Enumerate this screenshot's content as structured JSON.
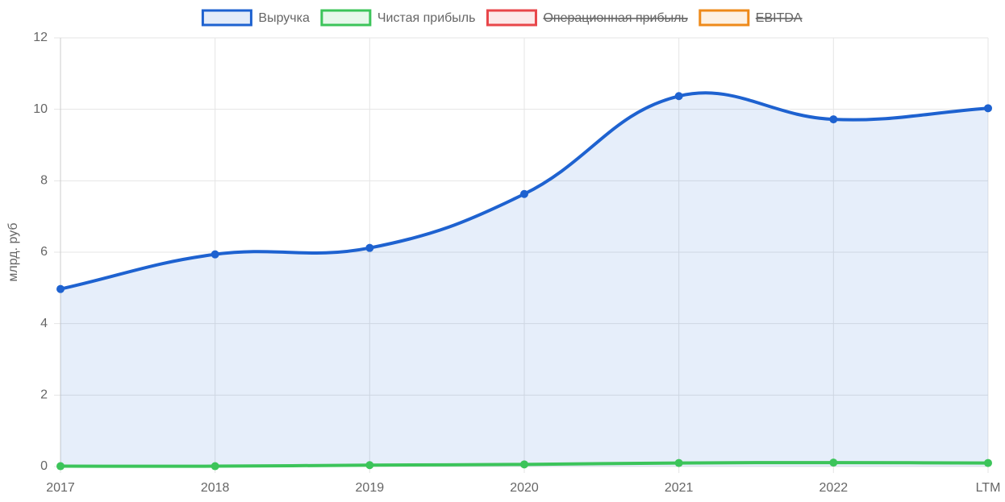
{
  "chart_data": {
    "type": "line",
    "y_label": "млрд. руб",
    "categories": [
      "2017",
      "2018",
      "2019",
      "2020",
      "2021",
      "2022",
      "LTM"
    ],
    "series": [
      {
        "name": "Выручка",
        "color": "#1e62d0",
        "fill": true,
        "values": [
          4.97,
          5.94,
          6.12,
          7.63,
          10.37,
          9.72,
          10.03
        ]
      },
      {
        "name": "Чистая прибыль",
        "color": "#3cc45a",
        "values": [
          0.01,
          0.01,
          0.04,
          0.06,
          0.1,
          0.11,
          0.1
        ]
      },
      {
        "name": "Операционная прибыль",
        "color": "#e8464a",
        "hidden": true
      },
      {
        "name": "EBITDA",
        "color": "#ee8a1a",
        "hidden": true
      }
    ],
    "ylim": [
      0,
      12
    ],
    "yticks": [
      0,
      2,
      4,
      6,
      8,
      10,
      12
    ],
    "grid": true,
    "legend": "top"
  }
}
